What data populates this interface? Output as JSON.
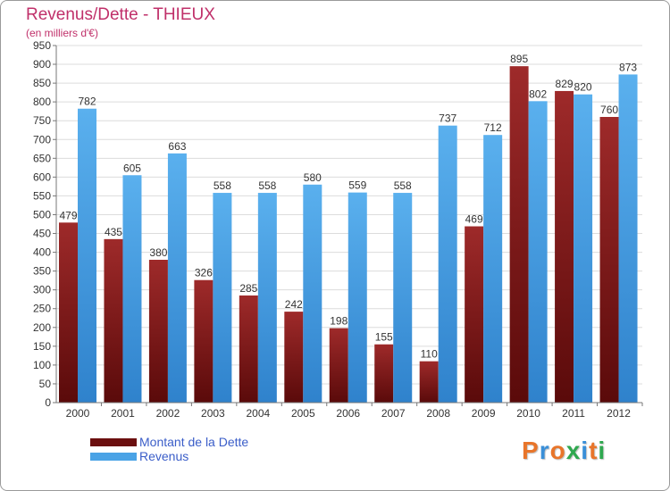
{
  "title": "Revenus/Dette - THIEUX",
  "subtitle": "(en milliers d'€)",
  "chart_data": {
    "type": "bar",
    "title": "Revenus/Dette - THIEUX",
    "ylabel": "(en milliers d'€)",
    "xlabel": "",
    "ylim": [
      0,
      950
    ],
    "ytick_step": 50,
    "grid": true,
    "legend_position": "bottom-left",
    "categories": [
      "2000",
      "2001",
      "2002",
      "2003",
      "2004",
      "2005",
      "2006",
      "2007",
      "2008",
      "2009",
      "2010",
      "2011",
      "2012"
    ],
    "series": [
      {
        "name": "Montant de la Dette",
        "color": "#8b1a1a",
        "values": [
          479,
          435,
          380,
          326,
          285,
          242,
          198,
          155,
          110,
          469,
          895,
          829,
          760
        ]
      },
      {
        "name": "Revenus",
        "color": "#4aa3e6",
        "values": [
          782,
          605,
          663,
          558,
          558,
          580,
          559,
          558,
          737,
          712,
          802,
          820,
          873
        ]
      }
    ]
  },
  "legend": {
    "dette_label": "Montant de la Dette",
    "revenus_label": "Revenus",
    "dette_color": "#6b0f0f",
    "revenus_color": "#4aa3e6"
  },
  "logo": {
    "text": "Proxiti",
    "colors": [
      "#e8752a",
      "#3a8fd8",
      "#e8752a",
      "#2fa84f",
      "#3a8fd8",
      "#e8752a",
      "#2fa84f"
    ]
  }
}
